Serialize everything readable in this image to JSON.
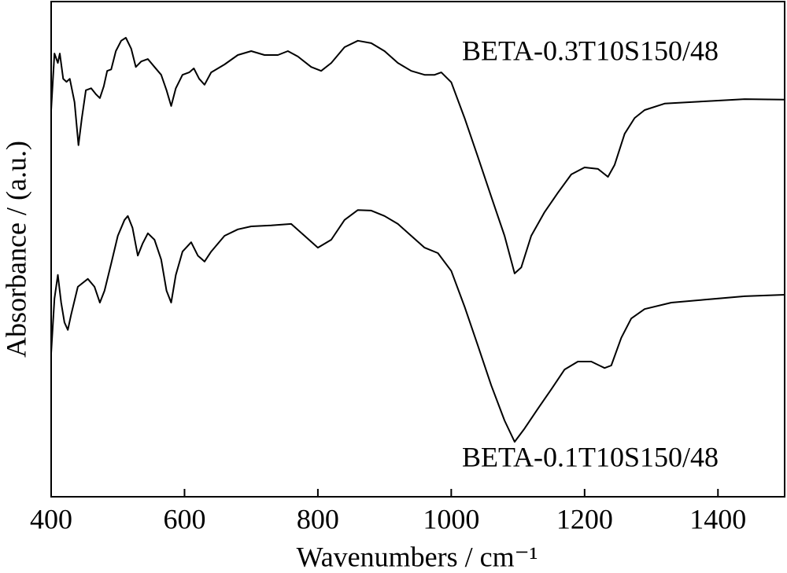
{
  "chart_data": {
    "type": "line",
    "xlabel": "Wavenumbers / cm⁻¹",
    "ylabel": "Absorbance / (a.u.)",
    "xlim": [
      400,
      1500
    ],
    "xticks": [
      400,
      600,
      800,
      1000,
      1200,
      1400
    ],
    "ylim": [
      0,
      100
    ],
    "color": "#000000",
    "series": [
      {
        "name": "BETA-0.3T10S150/48",
        "x": [
          400,
          405,
          410,
          413,
          418,
          423,
          428,
          435,
          441,
          446,
          452,
          460,
          467,
          473,
          479,
          484,
          490,
          497,
          505,
          512,
          520,
          527,
          535,
          545,
          555,
          565,
          573,
          580,
          587,
          597,
          607,
          614,
          622,
          630,
          640,
          660,
          680,
          700,
          720,
          740,
          755,
          770,
          790,
          805,
          820,
          840,
          860,
          880,
          900,
          920,
          940,
          960,
          975,
          985,
          1000,
          1020,
          1040,
          1060,
          1080,
          1095,
          1105,
          1120,
          1140,
          1160,
          1180,
          1200,
          1220,
          1235,
          1245,
          1260,
          1275,
          1290,
          1320,
          1360,
          1400,
          1440,
          1500
        ],
        "values": [
          78.1,
          89.5,
          87.6,
          89.5,
          84.4,
          83.8,
          84.4,
          79.7,
          71.0,
          76.5,
          82.1,
          82.5,
          81.3,
          80.5,
          82.9,
          86.0,
          86.3,
          90.0,
          92.1,
          92.7,
          90.5,
          86.8,
          87.9,
          88.4,
          86.8,
          85.2,
          82.1,
          78.9,
          82.5,
          85.2,
          85.7,
          86.5,
          84.4,
          83.2,
          85.7,
          87.3,
          89.2,
          90.0,
          89.2,
          89.2,
          90.0,
          88.9,
          86.8,
          86.0,
          87.6,
          90.8,
          92.1,
          91.6,
          90.0,
          87.6,
          86.0,
          85.2,
          85.2,
          85.7,
          83.7,
          76.5,
          68.6,
          60.6,
          52.7,
          45.1,
          46.3,
          52.7,
          57.5,
          61.4,
          65.1,
          66.5,
          66.2,
          64.6,
          67.0,
          73.3,
          76.5,
          78.1,
          79.4,
          79.7,
          80.0,
          80.3,
          80.2
        ]
      },
      {
        "name": "BETA-0.1T10S150/48",
        "x": [
          400,
          405,
          410,
          415,
          420,
          425,
          430,
          440,
          455,
          465,
          473,
          480,
          490,
          500,
          510,
          515,
          522,
          530,
          537,
          545,
          555,
          565,
          573,
          580,
          587,
          597,
          610,
          620,
          630,
          640,
          660,
          680,
          700,
          730,
          760,
          780,
          800,
          820,
          840,
          860,
          880,
          900,
          920,
          940,
          960,
          980,
          1000,
          1020,
          1040,
          1060,
          1080,
          1095,
          1110,
          1130,
          1150,
          1170,
          1190,
          1210,
          1230,
          1240,
          1255,
          1270,
          1290,
          1330,
          1380,
          1440,
          1500
        ],
        "values": [
          29.0,
          40.0,
          44.8,
          39.2,
          35.2,
          33.7,
          36.8,
          42.4,
          44.0,
          42.4,
          39.2,
          41.6,
          47.1,
          52.7,
          55.9,
          56.7,
          54.3,
          48.7,
          51.1,
          53.2,
          51.9,
          47.9,
          41.6,
          39.2,
          44.8,
          49.5,
          51.4,
          48.7,
          47.5,
          49.5,
          52.7,
          54.0,
          54.6,
          54.8,
          55.1,
          52.7,
          50.3,
          51.9,
          55.9,
          57.9,
          57.8,
          56.7,
          55.1,
          52.7,
          50.3,
          49.2,
          45.6,
          38.4,
          30.5,
          22.5,
          15.4,
          11.1,
          13.8,
          17.8,
          21.7,
          25.7,
          27.3,
          27.3,
          26.0,
          26.5,
          32.1,
          36.0,
          37.9,
          39.2,
          39.8,
          40.5,
          40.8
        ]
      }
    ]
  }
}
